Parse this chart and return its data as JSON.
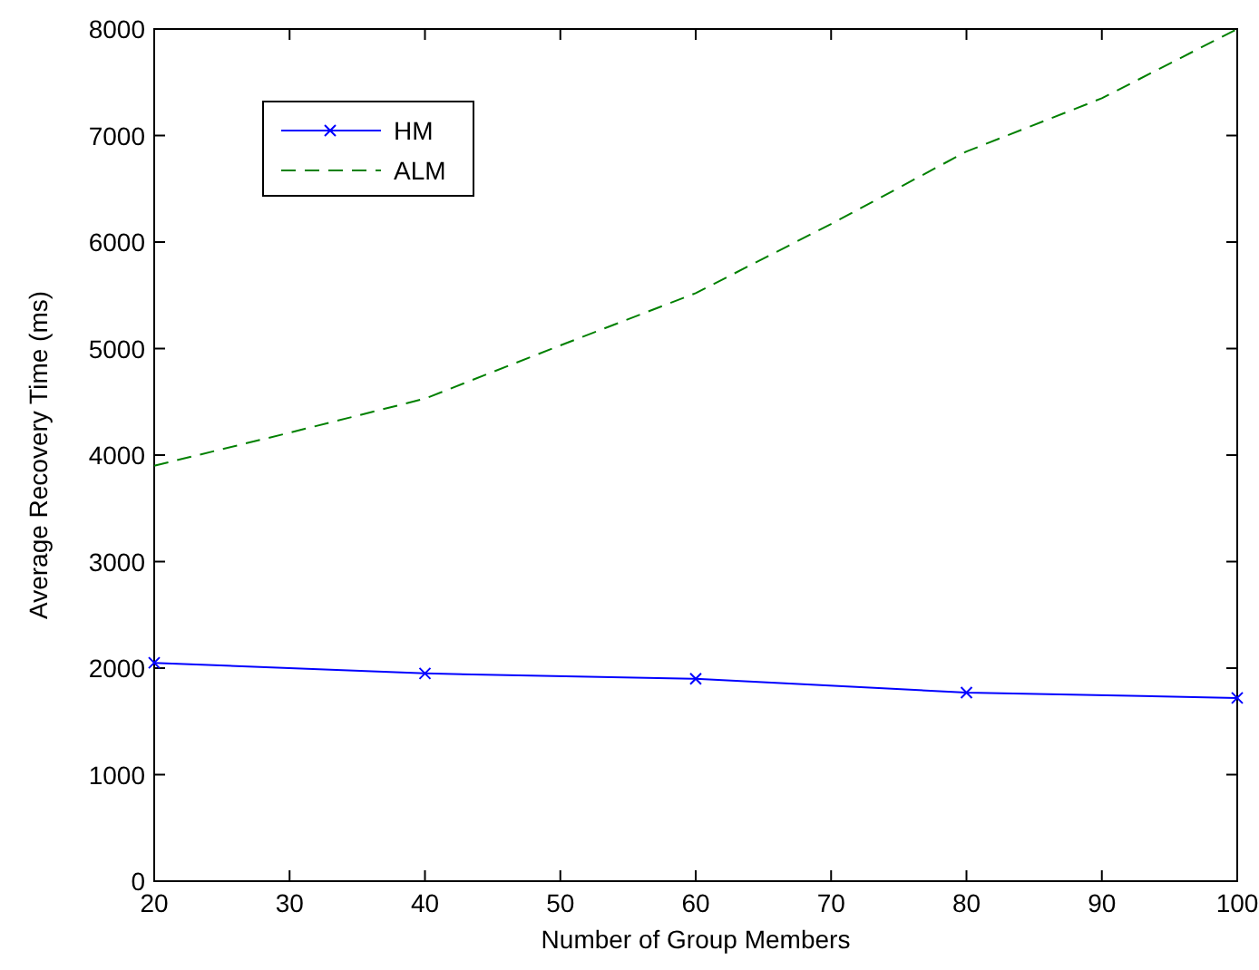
{
  "chart_data": {
    "type": "line",
    "xlabel": "Number of Group Members",
    "ylabel": "Average Recovery Time (ms)",
    "xlim": [
      20,
      100
    ],
    "xticks": [
      20,
      30,
      40,
      50,
      60,
      70,
      80,
      90,
      100
    ],
    "ylim": [
      0,
      8000
    ],
    "yticks": [
      0,
      1000,
      2000,
      3000,
      4000,
      5000,
      6000,
      7000,
      8000
    ],
    "legend": "top left",
    "grid": false,
    "series": [
      {
        "name": "HM",
        "color": "#0000ff",
        "x": [
          20,
          40,
          60,
          80,
          100
        ],
        "values": [
          2050,
          1950,
          1900,
          1770,
          1720
        ],
        "marker": "cross",
        "line_style": "solid"
      },
      {
        "name": "ALM",
        "color": "#008000",
        "x": [
          20,
          30,
          40,
          50,
          60,
          70,
          80,
          90,
          100
        ],
        "values": [
          3900,
          4210,
          4530,
          5030,
          5520,
          6170,
          6850,
          7350,
          8000
        ],
        "marker": "none",
        "line_style": "dashed"
      }
    ]
  }
}
